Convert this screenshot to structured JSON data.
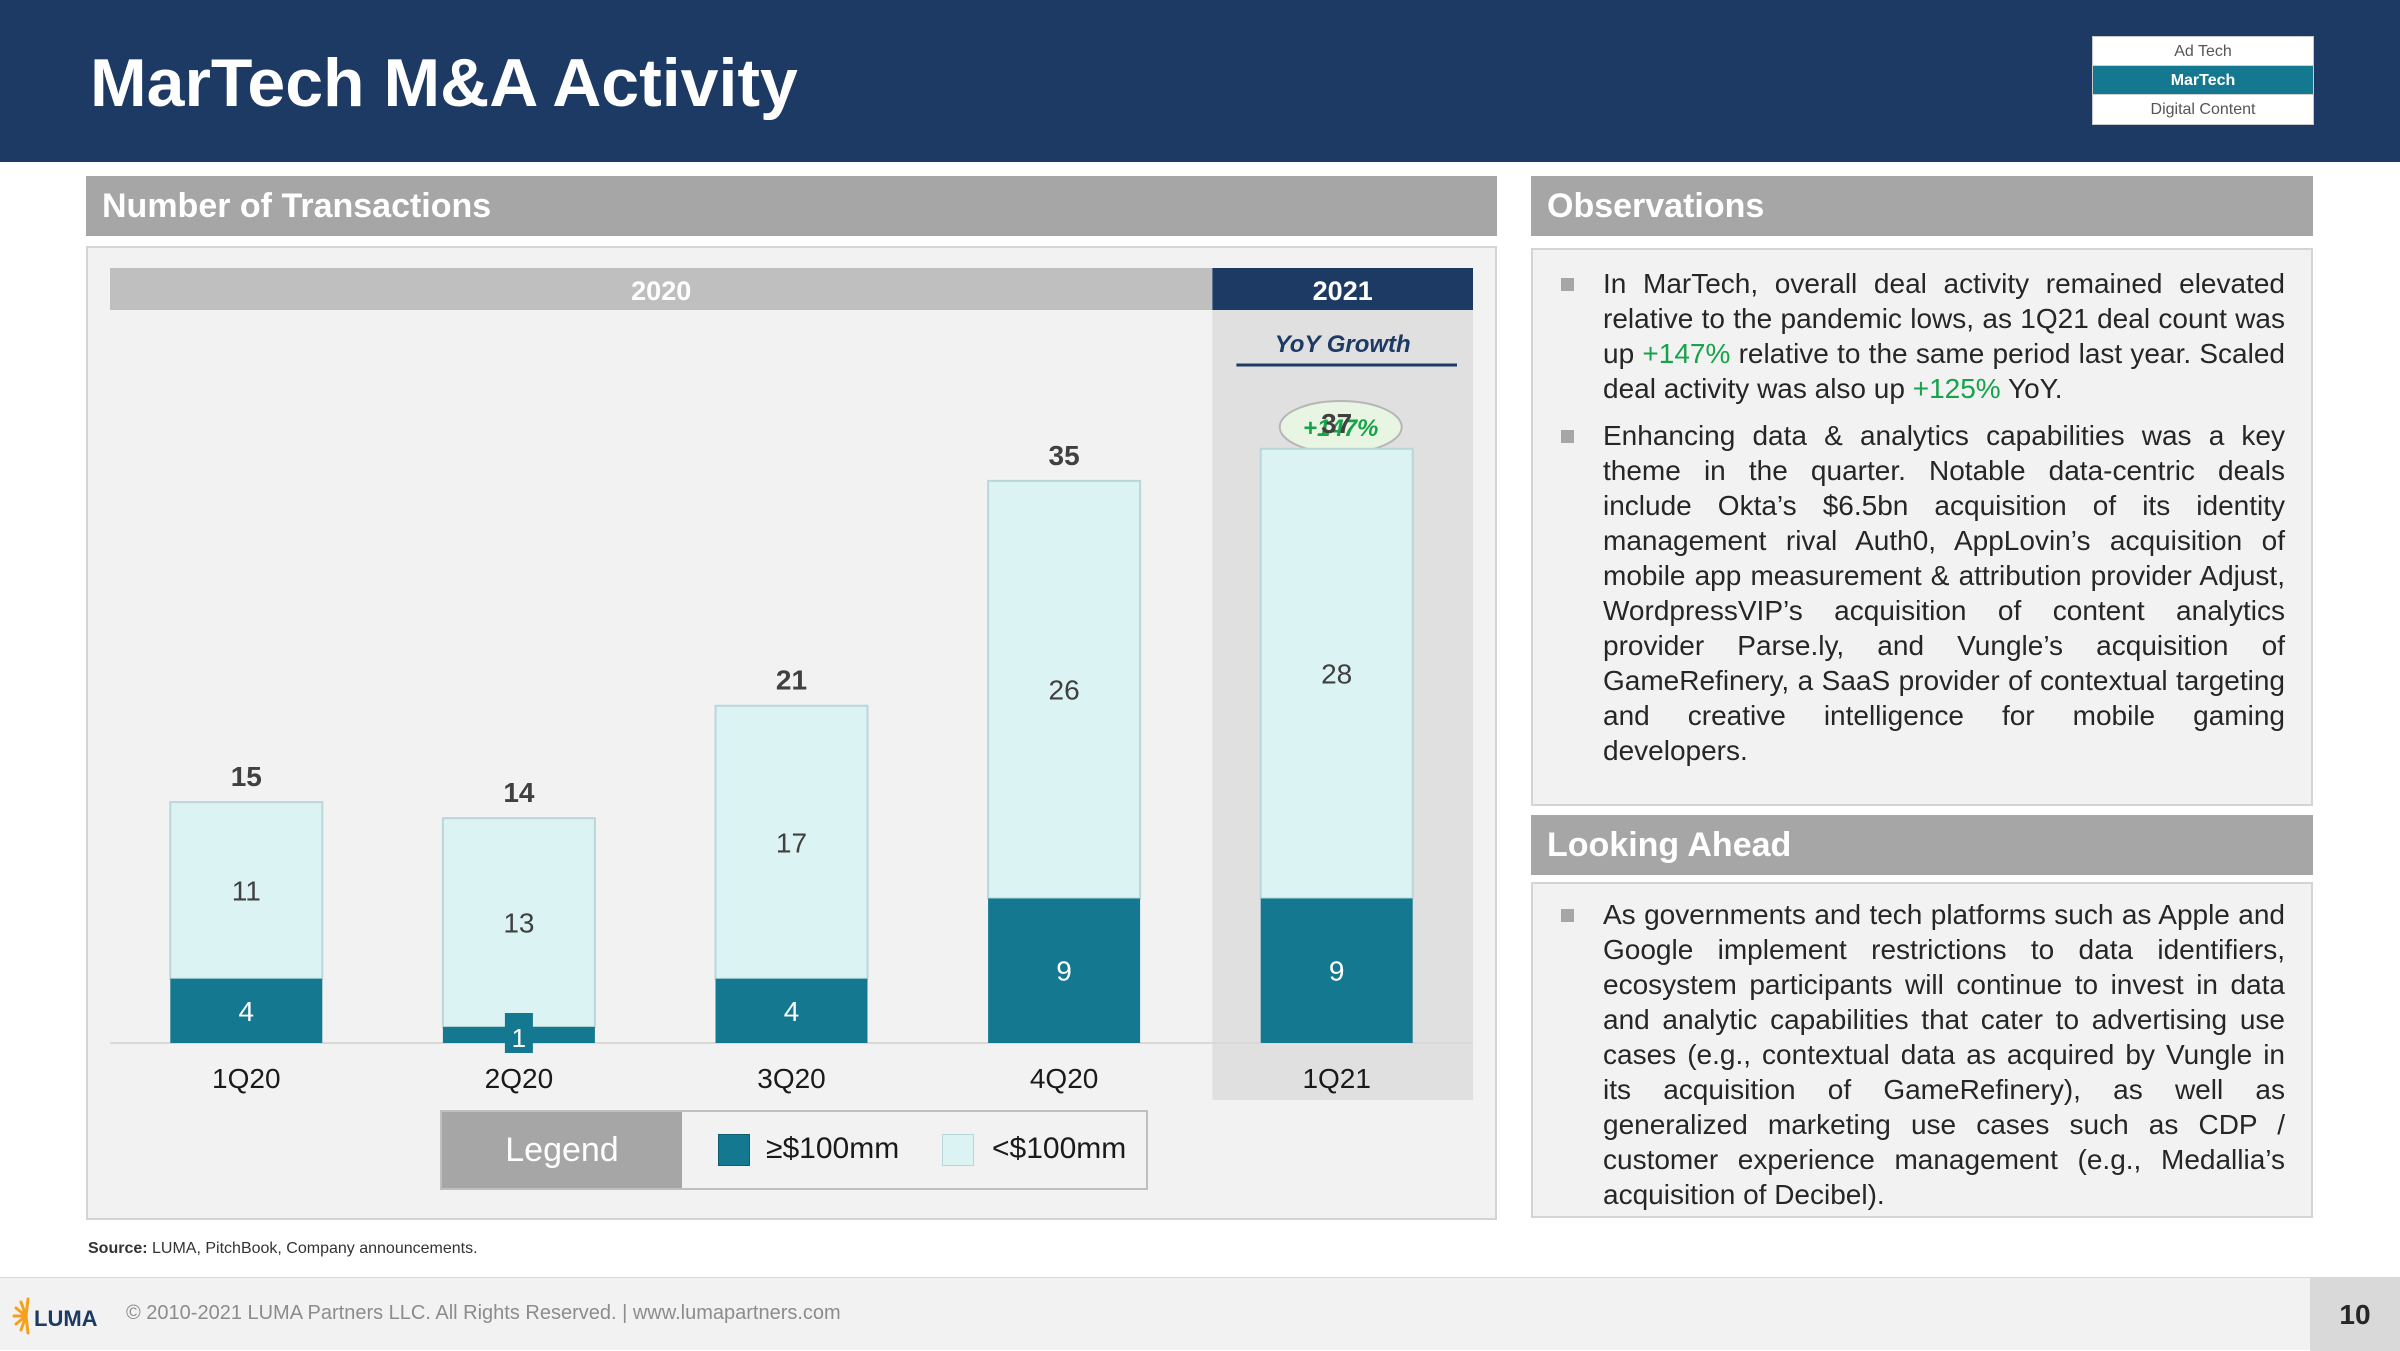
{
  "header": {
    "title": "MarTech M&A Activity",
    "nav": [
      "Ad Tech",
      "MarTech",
      "Digital Content"
    ],
    "nav_active": "MarTech"
  },
  "sections": {
    "transactions": "Number of Transactions",
    "observations": "Observations",
    "looking_ahead": "Looking Ahead"
  },
  "chart_data": {
    "type": "bar",
    "stacked": true,
    "categories": [
      "1Q20",
      "2Q20",
      "3Q20",
      "4Q20",
      "1Q21"
    ],
    "series": [
      {
        "name": "≥$100mm",
        "values": [
          4,
          1,
          4,
          9,
          9
        ],
        "color": "#157891"
      },
      {
        "name": "<$100mm",
        "values": [
          11,
          13,
          17,
          26,
          28
        ],
        "color": "#dcf3f4"
      }
    ],
    "totals": [
      15,
      14,
      21,
      35,
      37
    ],
    "year_groups": [
      {
        "label": "2020",
        "from": 0,
        "to": 3
      },
      {
        "label": "2021",
        "from": 4,
        "to": 4
      }
    ],
    "yoy": {
      "title": "YoY Growth",
      "value": "+147%"
    },
    "ylim": [
      0,
      42
    ],
    "legend_title": "Legend",
    "xlabel": "",
    "ylabel": ""
  },
  "legend": {
    "title": "Legend",
    "large": "≥$100mm",
    "small": "<$100mm"
  },
  "observations": [
    {
      "parts": [
        {
          "t": "In MarTech, overall deal activity remained elevated relative to the pandemic lows, as 1Q21 deal count was up "
        },
        {
          "t": "+147%",
          "green": true
        },
        {
          "t": " relative to the same period last year. Scaled deal activity was also up "
        },
        {
          "t": "+125%",
          "green": true
        },
        {
          "t": " YoY."
        }
      ]
    },
    {
      "parts": [
        {
          "t": "Enhancing data & analytics capabilities was a key theme in the quarter. Notable data-centric deals include Okta’s $6.5bn acquisition of its identity management rival Auth0, AppLovin’s acquisition of mobile app measurement & attribution provider Adjust, WordpressVIP’s acquisition of content analytics provider Parse.ly, and Vungle’s acquisition of GameRefinery, a SaaS provider of contextual targeting and creative intelligence for mobile gaming developers."
        }
      ]
    }
  ],
  "looking_ahead": [
    {
      "parts": [
        {
          "t": "As governments and tech platforms such as Apple and Google implement restrictions to data identifiers, ecosystem participants will continue to invest in data and analytic capabilities that cater to advertising use cases (e.g., contextual data as acquired by Vungle in its acquisition of GameRefinery), as well as generalized marketing use cases such as CDP / customer experience management (e.g., Medallia’s acquisition of Decibel)."
        }
      ]
    }
  ],
  "source": {
    "label": "Source:",
    "text": " LUMA, PitchBook, Company announcements."
  },
  "footer": {
    "logo_text": "LUMA",
    "copyright": "© 2010-2021 LUMA Partners LLC. All Rights Reserved. | www.lumapartners.com",
    "page": "10"
  },
  "colors": {
    "navy": "#1c3a64",
    "teal": "#157891",
    "light_teal": "#dcf3f4",
    "gray_head": "#a6a6a6",
    "green": "#16a34a",
    "logo_orange": "#f5a01a"
  }
}
